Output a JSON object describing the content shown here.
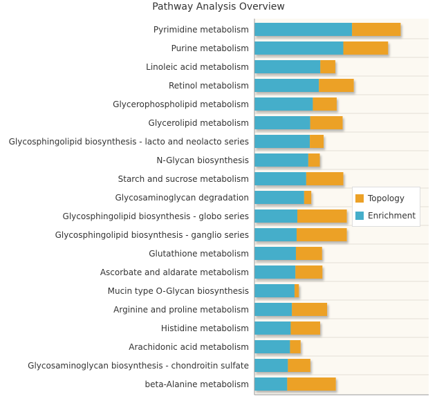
{
  "chart_data": {
    "type": "bar",
    "orientation": "horizontal",
    "stacked": true,
    "title": "Pathway Analysis Overview",
    "xlabel": "",
    "ylabel": "",
    "xlim": [
      0,
      100
    ],
    "categories": [
      "Pyrimidine metabolism",
      "Purine metabolism",
      "Linoleic acid metabolism",
      "Retinol metabolism",
      "Glycerophospholipid metabolism",
      "Glycerolipid metabolism",
      "Glycosphingolipid biosynthesis - lacto and neolacto series",
      "N-Glycan biosynthesis",
      "Starch and sucrose metabolism",
      "Glycosaminoglycan degradation",
      "Glycosphingolipid biosynthesis - globo series",
      "Glycosphingolipid biosynthesis - ganglio series",
      "Glutathione metabolism",
      "Ascorbate and aldarate metabolism",
      "Mucin type O-Glycan biosynthesis",
      "Arginine and proline metabolism",
      "Histidine metabolism",
      "Arachidonic acid metabolism",
      "Glycosaminoglycan biosynthesis - chondroitin sulfate",
      "beta-Alanine metabolism"
    ],
    "series": [
      {
        "name": "Enrichment",
        "color": "#45AECA",
        "values": [
          56.0,
          51.0,
          37.8,
          37.0,
          33.5,
          32.0,
          31.8,
          30.9,
          29.7,
          28.5,
          24.6,
          24.2,
          23.8,
          23.5,
          23.0,
          21.5,
          20.8,
          20.4,
          19.2,
          18.8
        ]
      },
      {
        "name": "Topology",
        "color": "#ECA127",
        "values": [
          27.9,
          25.7,
          8.6,
          20.0,
          13.7,
          18.6,
          7.9,
          6.6,
          21.3,
          4.1,
          28.4,
          28.8,
          15.0,
          15.5,
          2.5,
          20.2,
          16.9,
          6.1,
          12.9,
          27.9
        ]
      }
    ],
    "grid": false,
    "legend": "right"
  }
}
